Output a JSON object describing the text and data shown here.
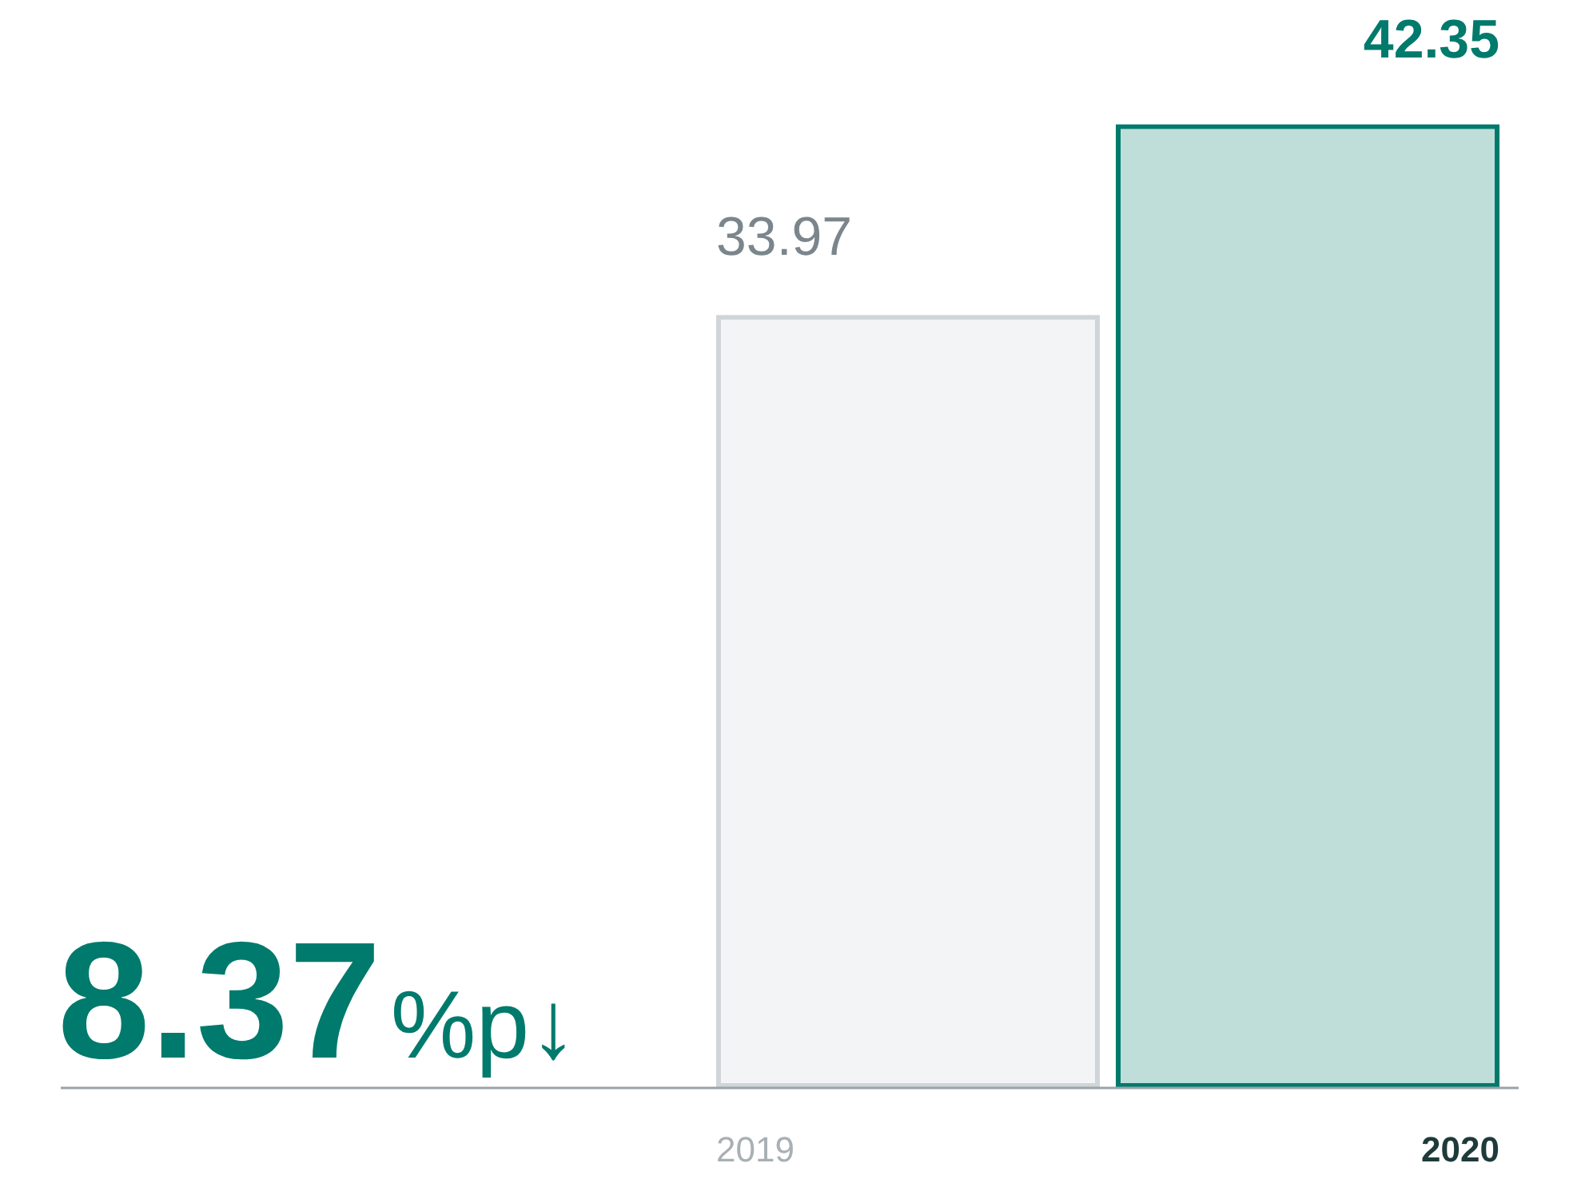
{
  "chart_data": {
    "type": "bar",
    "categories": [
      "2019",
      "2020"
    ],
    "values": [
      33.97,
      42.35
    ],
    "colors": [
      "#cfd5d8",
      "#007a6c"
    ],
    "data_labels": true,
    "legend": false,
    "annotations": [
      "8.37%p↓"
    ]
  }
}
